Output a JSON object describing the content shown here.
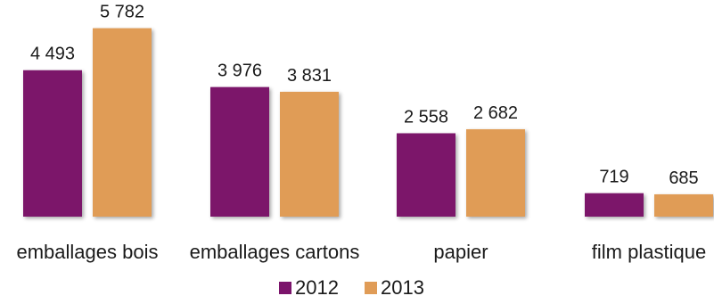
{
  "chart_data": {
    "type": "bar",
    "title": "",
    "xlabel": "",
    "ylabel": "",
    "categories": [
      "emballages bois",
      "emballages cartons",
      "papier",
      "film plastique"
    ],
    "series": [
      {
        "name": "2012",
        "color": "#7b146b",
        "values": [
          4493,
          3976,
          2558,
          719
        ],
        "labels": [
          "4 493",
          "3 976",
          "2 558",
          "719"
        ]
      },
      {
        "name": "2013",
        "color": "#e09c57",
        "values": [
          5782,
          3831,
          2682,
          685
        ],
        "labels": [
          "5 782",
          "3 831",
          "2 682",
          "685"
        ]
      }
    ],
    "ylim": [
      0,
      6100
    ],
    "grid": false,
    "legend": "bottom-center"
  }
}
